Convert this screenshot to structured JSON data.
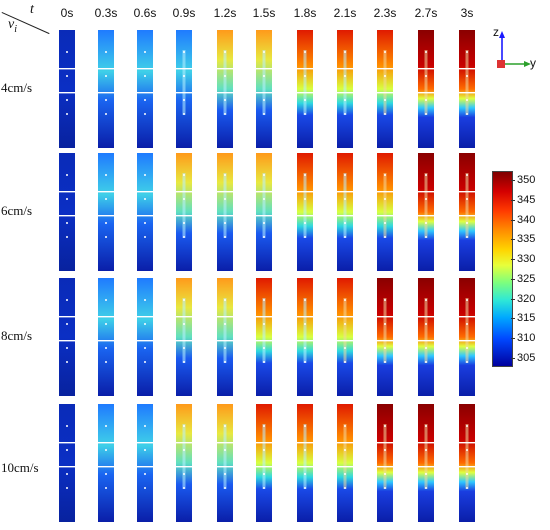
{
  "header": {
    "corner_top": "t",
    "corner_bottom": "v",
    "corner_bottom_sub": "i"
  },
  "time_labels": [
    "0s",
    "0.3s",
    "0.6s",
    "0.9s",
    "1.2s",
    "1.5s",
    "1.8s",
    "2.1s",
    "2.3s",
    "2.7s",
    "3s"
  ],
  "row_labels": [
    "4cm/s",
    "6cm/s",
    "8cm/s",
    "10cm/s"
  ],
  "colorbar": {
    "ticks": [
      "350",
      "345",
      "340",
      "335",
      "330",
      "325",
      "320",
      "315",
      "310",
      "305"
    ],
    "range": [
      303,
      352
    ]
  },
  "axes": {
    "z": "z",
    "y": "y",
    "z_color": "#1a1aff",
    "y_color": "#2ca02c"
  },
  "colors": {
    "cold": "#0a1ea8",
    "hot": "#b40000",
    "band": "#ffffff"
  }
}
